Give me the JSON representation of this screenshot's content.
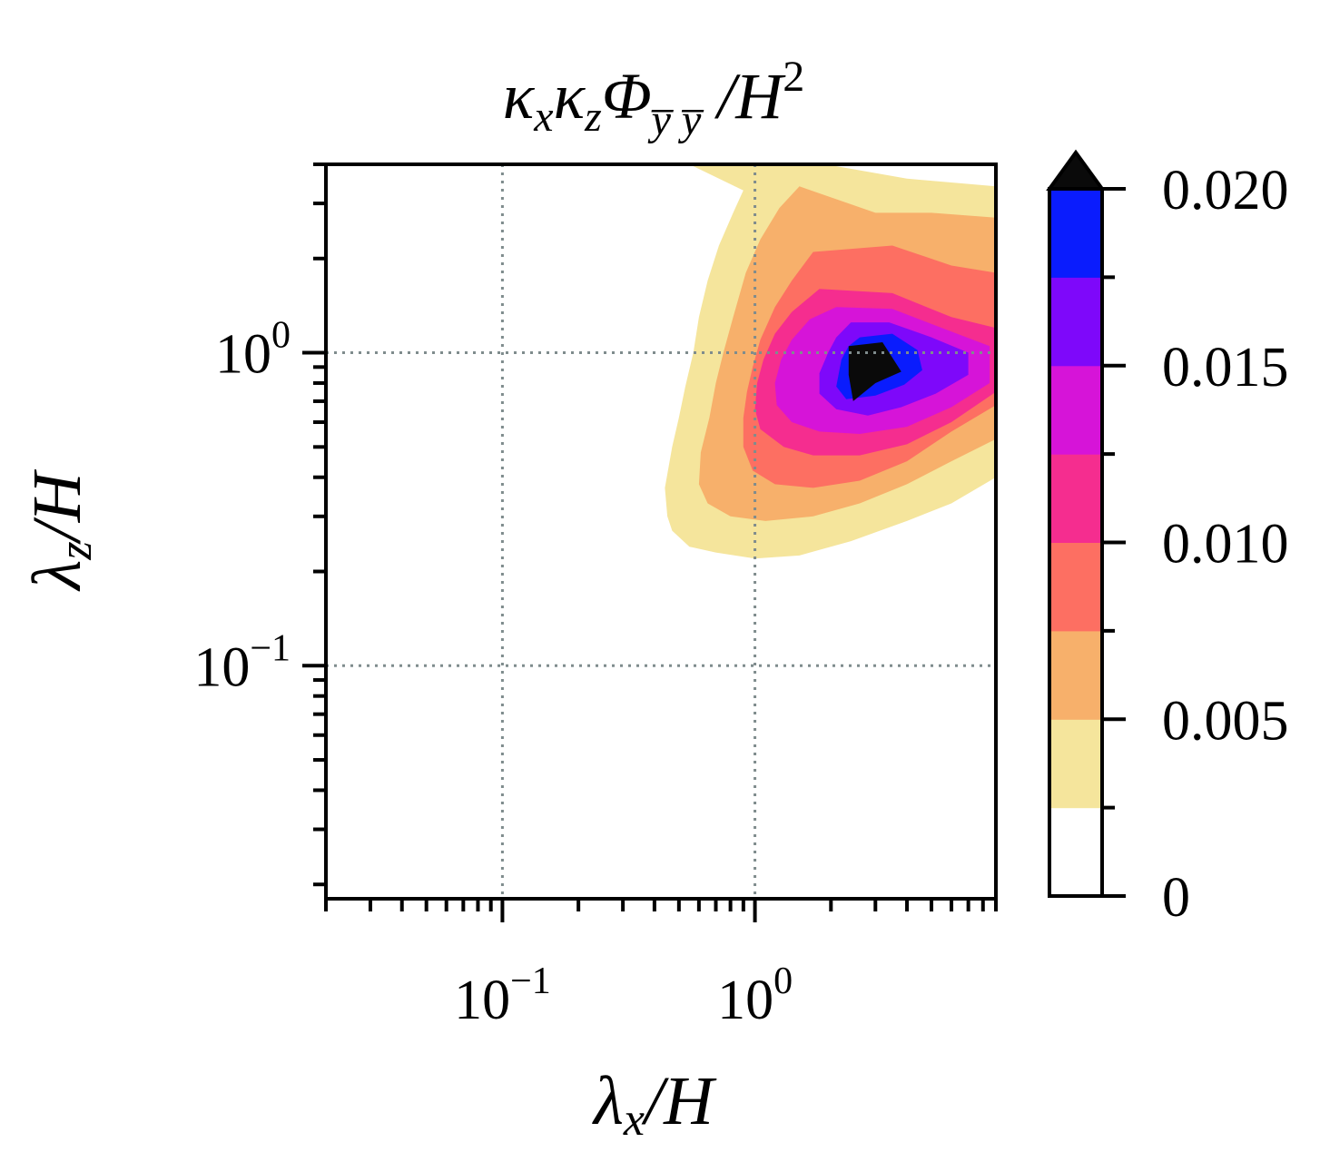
{
  "chart_data": {
    "type": "contourf",
    "title": {
      "main": "κ",
      "sub1": "x",
      "main2": "κ",
      "sub2": "z",
      "phi": "Φ",
      "sub3": "y̅ y̅",
      "tail": " /H",
      "sup": "2"
    },
    "xlabel": {
      "main": "λ",
      "sub": "x",
      "tail": "/H"
    },
    "ylabel": {
      "main": "λ",
      "sub": "z",
      "tail": "/H"
    },
    "xscale": "log",
    "yscale": "log",
    "xlim": [
      0.02,
      9.0
    ],
    "ylim": [
      0.018,
      4.0
    ],
    "x_ticks": [
      {
        "base": "10",
        "exp": "−1",
        "value": 0.1
      },
      {
        "base": "10",
        "exp": "0",
        "value": 1.0
      }
    ],
    "y_ticks": [
      {
        "base": "10",
        "exp": "−1",
        "value": 0.1
      },
      {
        "base": "10",
        "exp": "0",
        "value": 1.0
      }
    ],
    "grid": true,
    "levels": [
      0,
      0.0025,
      0.005,
      0.0075,
      0.01,
      0.0125,
      0.015,
      0.0175,
      0.02
    ],
    "level_colors": [
      "#ffffff",
      "#f5e59c",
      "#f7b06b",
      "#fd6f62",
      "#f52d8f",
      "#d614d8",
      "#7e08fa",
      "#0a1cfd"
    ],
    "extend_color": "#0a0a0a",
    "colorbar": {
      "ticks": [
        {
          "label": "0",
          "value": 0
        },
        {
          "label": "0.005",
          "value": 0.005
        },
        {
          "label": "0.010",
          "value": 0.01
        },
        {
          "label": "0.015",
          "value": 0.015
        },
        {
          "label": "0.020",
          "value": 0.02
        }
      ],
      "extend": "max"
    },
    "peak": {
      "x": 3.0,
      "y": 0.9,
      "value": 0.021
    },
    "regions": [
      {
        "level": 0.0025,
        "points": [
          [
            0.55,
            4.0
          ],
          [
            1.6,
            4.1
          ],
          [
            4,
            3.6
          ],
          [
            9,
            3.4
          ],
          [
            9,
            0.4
          ],
          [
            6,
            0.33
          ],
          [
            4,
            0.29
          ],
          [
            2.4,
            0.25
          ],
          [
            1.5,
            0.225
          ],
          [
            1.0,
            0.22
          ],
          [
            0.7,
            0.23
          ],
          [
            0.55,
            0.24
          ],
          [
            0.47,
            0.27
          ],
          [
            0.45,
            0.3
          ],
          [
            0.44,
            0.37
          ],
          [
            0.47,
            0.5
          ],
          [
            0.5,
            0.62
          ],
          [
            0.53,
            0.78
          ],
          [
            0.57,
            1.0
          ],
          [
            0.6,
            1.3
          ],
          [
            0.65,
            1.7
          ],
          [
            0.72,
            2.2
          ],
          [
            0.82,
            2.8
          ],
          [
            0.9,
            3.3
          ]
        ]
      },
      {
        "level": 0.005,
        "points": [
          [
            1.5,
            3.4
          ],
          [
            3,
            2.8
          ],
          [
            5,
            2.8
          ],
          [
            9,
            2.7
          ],
          [
            9,
            0.53
          ],
          [
            6,
            0.45
          ],
          [
            4,
            0.38
          ],
          [
            2.6,
            0.33
          ],
          [
            1.7,
            0.3
          ],
          [
            1.1,
            0.29
          ],
          [
            0.8,
            0.3
          ],
          [
            0.65,
            0.33
          ],
          [
            0.6,
            0.38
          ],
          [
            0.61,
            0.48
          ],
          [
            0.66,
            0.62
          ],
          [
            0.7,
            0.8
          ],
          [
            0.75,
            1.0
          ],
          [
            0.82,
            1.3
          ],
          [
            0.92,
            1.8
          ],
          [
            1.05,
            2.3
          ],
          [
            1.25,
            2.9
          ]
        ]
      },
      {
        "level": 0.0075,
        "points": [
          [
            1.7,
            2.1
          ],
          [
            3.5,
            2.2
          ],
          [
            6,
            1.9
          ],
          [
            9,
            1.8
          ],
          [
            9,
            0.68
          ],
          [
            6,
            0.56
          ],
          [
            4,
            0.45
          ],
          [
            2.6,
            0.39
          ],
          [
            1.7,
            0.37
          ],
          [
            1.2,
            0.38
          ],
          [
            0.98,
            0.42
          ],
          [
            0.9,
            0.5
          ],
          [
            0.9,
            0.62
          ],
          [
            0.93,
            0.75
          ],
          [
            0.98,
            0.9
          ],
          [
            1.05,
            1.1
          ],
          [
            1.2,
            1.4
          ],
          [
            1.4,
            1.7
          ]
        ]
      },
      {
        "level": 0.01,
        "points": [
          [
            1.8,
            1.6
          ],
          [
            3.5,
            1.55
          ],
          [
            6,
            1.3
          ],
          [
            9,
            1.2
          ],
          [
            9,
            0.75
          ],
          [
            6,
            0.6
          ],
          [
            4,
            0.51
          ],
          [
            2.6,
            0.47
          ],
          [
            1.7,
            0.47
          ],
          [
            1.3,
            0.5
          ],
          [
            1.05,
            0.57
          ],
          [
            1.0,
            0.66
          ],
          [
            1.02,
            0.8
          ],
          [
            1.08,
            0.95
          ],
          [
            1.2,
            1.15
          ],
          [
            1.4,
            1.35
          ]
        ]
      },
      {
        "level": 0.0125,
        "points": [
          [
            2.1,
            1.4
          ],
          [
            3.5,
            1.38
          ],
          [
            5.5,
            1.2
          ],
          [
            8.5,
            1.05
          ],
          [
            8.5,
            0.8
          ],
          [
            6,
            0.67
          ],
          [
            4,
            0.58
          ],
          [
            2.6,
            0.55
          ],
          [
            1.8,
            0.56
          ],
          [
            1.4,
            0.6
          ],
          [
            1.22,
            0.68
          ],
          [
            1.2,
            0.8
          ],
          [
            1.27,
            0.95
          ],
          [
            1.4,
            1.1
          ],
          [
            1.65,
            1.28
          ]
        ]
      },
      {
        "level": 0.015,
        "points": [
          [
            2.4,
            1.25
          ],
          [
            3.4,
            1.25
          ],
          [
            5,
            1.12
          ],
          [
            7,
            1.0
          ],
          [
            7,
            0.85
          ],
          [
            5.2,
            0.74
          ],
          [
            3.8,
            0.67
          ],
          [
            2.8,
            0.63
          ],
          [
            2.1,
            0.66
          ],
          [
            1.8,
            0.74
          ],
          [
            1.8,
            0.86
          ],
          [
            1.95,
            1.0
          ],
          [
            2.1,
            1.12
          ]
        ]
      },
      {
        "level": 0.0175,
        "points": [
          [
            2.6,
            1.12
          ],
          [
            3.5,
            1.15
          ],
          [
            4.4,
            1.02
          ],
          [
            4.6,
            0.88
          ],
          [
            3.9,
            0.79
          ],
          [
            3.0,
            0.73
          ],
          [
            2.3,
            0.71
          ],
          [
            2.1,
            0.78
          ],
          [
            2.2,
            0.95
          ],
          [
            2.35,
            1.05
          ]
        ]
      },
      {
        "level": 0.02,
        "points": [
          [
            2.35,
            1.05
          ],
          [
            3.2,
            1.08
          ],
          [
            3.8,
            0.87
          ],
          [
            3.0,
            0.8
          ],
          [
            2.45,
            0.7
          ],
          [
            2.35,
            0.85
          ]
        ]
      }
    ]
  }
}
